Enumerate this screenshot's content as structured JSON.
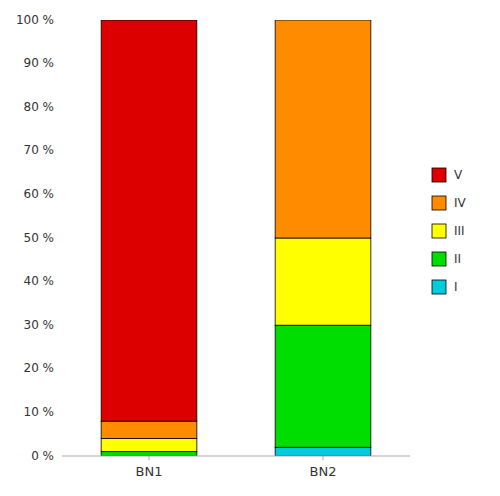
{
  "chart_data": {
    "type": "bar",
    "stacked": true,
    "categories": [
      "BN1",
      "BN2"
    ],
    "series": [
      {
        "name": "I",
        "color": "#00CCDD",
        "values": [
          0,
          2
        ]
      },
      {
        "name": "II",
        "color": "#00DD00",
        "values": [
          1,
          28
        ]
      },
      {
        "name": "III",
        "color": "#FFFF00",
        "values": [
          3,
          20
        ]
      },
      {
        "name": "IV",
        "color": "#FF8C00",
        "values": [
          4,
          50
        ]
      },
      {
        "name": "V",
        "color": "#DD0000",
        "values": [
          92,
          0
        ]
      }
    ],
    "ylim": [
      0,
      100
    ],
    "yticks": [
      {
        "value": 0,
        "label": "0 %"
      },
      {
        "value": 10,
        "label": "10 %"
      },
      {
        "value": 20,
        "label": "20 %"
      },
      {
        "value": 30,
        "label": "30 %"
      },
      {
        "value": 40,
        "label": "40 %"
      },
      {
        "value": 50,
        "label": "50 %"
      },
      {
        "value": 60,
        "label": "60 %"
      },
      {
        "value": 70,
        "label": "70 %"
      },
      {
        "value": 80,
        "label": "80 %"
      },
      {
        "value": 90,
        "label": "90 %"
      },
      {
        "value": 100,
        "label": "100 %"
      }
    ],
    "grid": false,
    "legend": "right"
  }
}
